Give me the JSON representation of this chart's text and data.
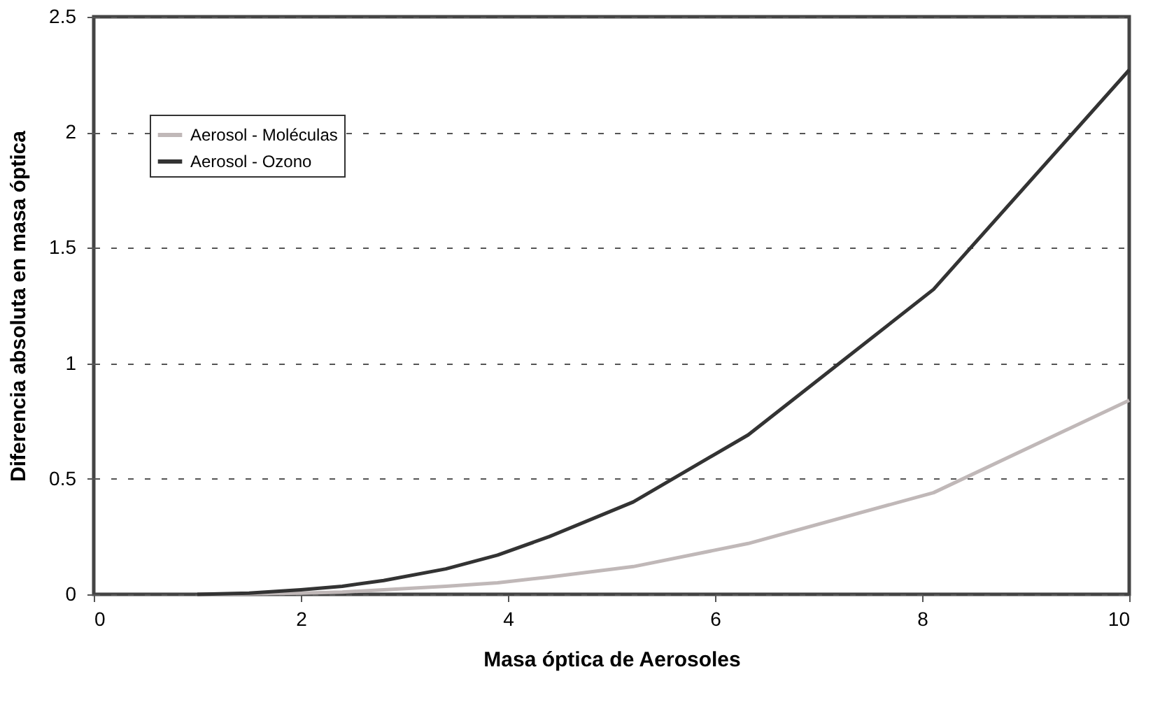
{
  "chart_data": {
    "type": "line",
    "xlabel": "Masa óptica de Aerosoles",
    "ylabel": "Diferencia absoluta en masa óptica",
    "xlim": [
      0,
      10
    ],
    "xticks": [
      0,
      2,
      4,
      6,
      8,
      10
    ],
    "ylim": [
      0,
      2.5
    ],
    "yticks": [
      0,
      0.5,
      1,
      1.5,
      2,
      2.5
    ],
    "grid": "y",
    "legend": "top left",
    "marker": "none",
    "line_style": "solid",
    "series": [
      {
        "name": "Aerosol - Moléculas",
        "color": "#c0b8b8",
        "x": [
          1,
          1.5,
          2,
          2.4,
          2.8,
          3.4,
          3.9,
          4.4,
          5.21,
          6.32,
          8.11,
          10
        ],
        "values": [
          0,
          0.002,
          0.005,
          0.01,
          0.02,
          0.035,
          0.05,
          0.075,
          0.12,
          0.22,
          0.44,
          0.84
        ]
      },
      {
        "name": "Aerosol - Ozono",
        "color": "#333333",
        "x": [
          1,
          1.5,
          2,
          2.4,
          2.8,
          3.4,
          3.9,
          4.4,
          5.21,
          6.32,
          8.11,
          10
        ],
        "values": [
          0,
          0.005,
          0.02,
          0.035,
          0.06,
          0.11,
          0.17,
          0.25,
          0.4,
          0.69,
          1.32,
          2.27
        ]
      }
    ]
  }
}
